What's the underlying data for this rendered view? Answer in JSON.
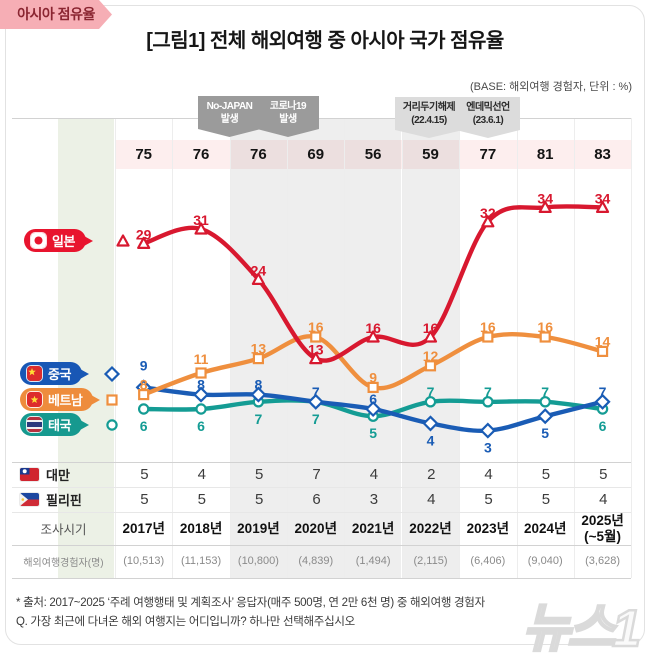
{
  "card": {
    "title": "[그림1] 전체 해외여행 중 아시아 국가 점유율",
    "base_note": "(BASE: 해외여행 경험자, 단위 : %)"
  },
  "annotations": [
    {
      "line1": "No-JAPAN",
      "line2": "발생",
      "style": "dark"
    },
    {
      "line1": "코로나19",
      "line2": "발생",
      "style": "dark"
    },
    {
      "line1": "거리두기해제",
      "line2": "(22.4.15)",
      "style": "light"
    },
    {
      "line1": "엔데믹선언",
      "line2": "(23.6.1)",
      "style": "light"
    }
  ],
  "asia_share": {
    "label": "아시아 점유율",
    "values": [
      75,
      76,
      76,
      69,
      56,
      59,
      77,
      81,
      83
    ]
  },
  "chart_data": {
    "type": "line",
    "x": [
      "2017년",
      "2018년",
      "2019년",
      "2020년",
      "2021년",
      "2022년",
      "2023년",
      "2024년",
      "2025년(~5월)"
    ],
    "ylim": [
      0,
      36
    ],
    "grid": "vertical-only",
    "legend_position": "left",
    "shaded_columns_gray": [
      "2019년",
      "2020년",
      "2021년",
      "2022년"
    ],
    "shaded_columns_green": [
      "2025년"
    ],
    "series": [
      {
        "name": "일본",
        "color": "#d8182f",
        "marker": "triangle",
        "values": [
          29,
          31,
          24,
          13,
          16,
          16,
          32,
          34,
          34
        ],
        "label_dy": [
          -13,
          -13,
          -13,
          -13,
          -13,
          -13,
          -13,
          -13,
          -13
        ]
      },
      {
        "name": "중국",
        "color": "#1a5cb5",
        "marker": "diamond",
        "values": [
          9,
          8,
          8,
          7,
          6,
          4,
          3,
          5,
          7
        ],
        "label_dy": [
          -26,
          -14,
          -14,
          -14,
          -14,
          22,
          22,
          22,
          -14
        ]
      },
      {
        "name": "베트남",
        "color": "#ef8f3e",
        "marker": "square",
        "values": [
          8,
          11,
          13,
          16,
          9,
          12,
          16,
          16,
          14
        ],
        "label_dy": [
          -14,
          -18,
          -14,
          -14,
          -14,
          -14,
          -14,
          -14,
          -14
        ]
      },
      {
        "name": "태국",
        "color": "#149c94",
        "marker": "circle",
        "values": [
          6,
          6,
          7,
          7,
          5,
          7,
          7,
          7,
          6
        ],
        "label_dy": [
          22,
          22,
          22,
          22,
          22,
          -14,
          -14,
          -14,
          22
        ]
      }
    ]
  },
  "sub_table": {
    "rows": [
      {
        "label": "대만",
        "flag": "taiwan",
        "values": [
          5,
          4,
          5,
          7,
          4,
          2,
          4,
          5,
          5
        ]
      },
      {
        "label": "필리핀",
        "flag": "philippines",
        "values": [
          5,
          5,
          5,
          6,
          3,
          4,
          5,
          5,
          4
        ]
      }
    ]
  },
  "survey": {
    "period_label": "조사시기",
    "periods": [
      "2017년",
      "2018년",
      "2019년",
      "2020년",
      "2021년",
      "2022년",
      "2023년",
      "2024년",
      "2025년\n(~5월)"
    ],
    "participants_label": "해외여행경험자(명)",
    "participants": [
      "(10,513)",
      "(11,153)",
      "(10,800)",
      "(4,839)",
      "(1,494)",
      "(2,115)",
      "(6,406)",
      "(9,040)",
      "(3,628)"
    ]
  },
  "footnotes": {
    "source": "* 출처: 2017~2025 ‘주례 여행행태 및 계획조사’ 응답자(매주 500명, 연 2만 6천 명) 중 해외여행 경험자",
    "question": "Q. 가장 최근에 다녀온 해외 여행지는 어디입니까? 하나만 선택해주십시오"
  },
  "watermark": "뉴스1",
  "colors": {
    "gray_band": "rgba(120,120,120,0.13)",
    "green_band": "rgba(150,180,115,0.18)",
    "asia_label_bg": "#f6aeb5",
    "asia_row_bg": "#fdeeee"
  }
}
